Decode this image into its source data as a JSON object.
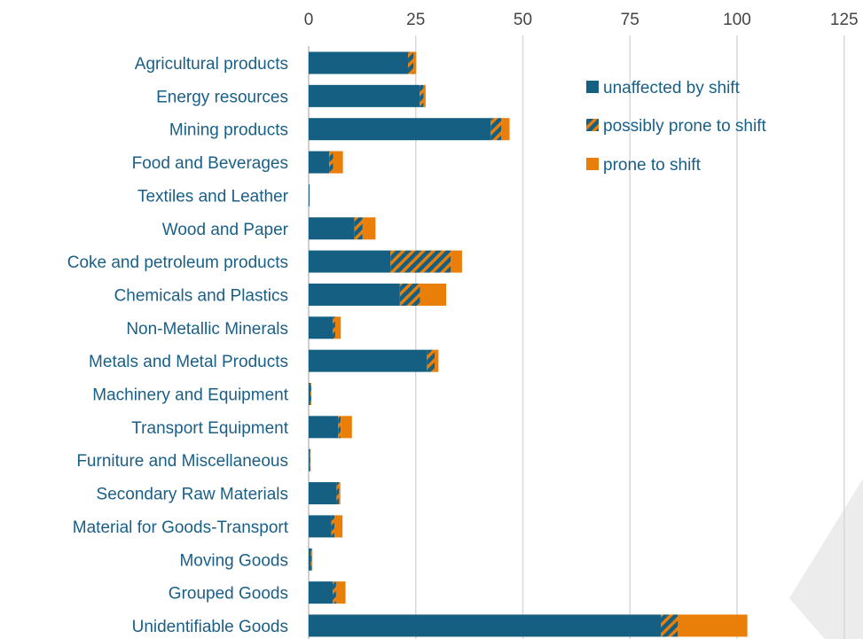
{
  "chart_data": {
    "type": "bar",
    "orientation": "horizontal",
    "stacked": true,
    "title": "",
    "xlabel": "",
    "ylabel": "",
    "xlim": [
      0,
      125
    ],
    "x_ticks": [
      "0",
      "25",
      "50",
      "75",
      "100",
      "125"
    ],
    "x_tick_values": [
      0,
      25,
      50,
      75,
      100,
      125
    ],
    "x_axis_position": "top",
    "grid": "vertical",
    "legend_position": "top-right",
    "categories": [
      "Agricultural products",
      "Energy resources",
      "Mining products",
      "Food and Beverages",
      "Textiles and Leather",
      "Wood and Paper",
      "Coke and petroleum products",
      "Chemicals and Plastics",
      "Non-Metallic Minerals",
      "Metals and Metal Products",
      "Machinery and Equipment",
      "Transport Equipment",
      "Furniture and Miscellaneous",
      "Secondary Raw Materials",
      "Material for Goods-Transport",
      "Moving Goods",
      "Grouped Goods",
      "Unidentifiable Goods"
    ],
    "series": [
      {
        "name": "unaffected by shift",
        "color": "#156082",
        "pattern": "solid",
        "values": [
          23.2,
          25.9,
          42.5,
          4.8,
          0.2,
          10.7,
          19.1,
          21.3,
          5.6,
          27.6,
          0.4,
          6.9,
          0.2,
          6.5,
          5.3,
          0.5,
          5.6,
          82.2
        ]
      },
      {
        "name": "possibly prone to shift",
        "color": "#156082",
        "pattern": "hatched",
        "values": [
          1.3,
          0.9,
          2.5,
          0.9,
          0.0,
          1.9,
          14.1,
          4.7,
          0.6,
          1.8,
          0.2,
          0.6,
          0.1,
          0.6,
          0.7,
          0.2,
          0.8,
          4.0
        ]
      },
      {
        "name": "prone to shift",
        "color": "#e97e08",
        "pattern": "solid",
        "values": [
          0.6,
          0.5,
          1.9,
          2.3,
          0.0,
          3.0,
          2.6,
          6.1,
          1.3,
          0.9,
          0.0,
          2.6,
          0.1,
          0.3,
          1.9,
          0.1,
          2.2,
          16.2
        ]
      }
    ]
  }
}
